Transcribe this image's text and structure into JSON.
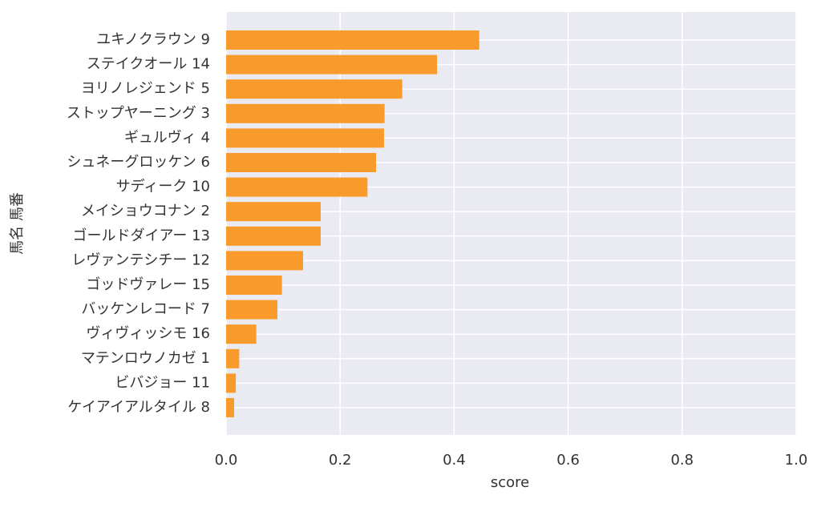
{
  "chart_data": {
    "type": "barh",
    "xlabel": "score",
    "ylabel": "馬名 馬番",
    "categories": [
      "ユキノクラウン 9",
      "ステイクオール 14",
      "ヨリノレジェンド 5",
      "ストップヤーニング 3",
      "ギュルヴィ 4",
      "シュネーグロッケン 6",
      "サディーク 10",
      "メイショウコナン 2",
      "ゴールドダイアー 13",
      "レヴァンテシチー 12",
      "ゴッドヴァレー 15",
      "バッケンレコード 7",
      "ヴィヴィッシモ 16",
      "マテンロウノカゼ 1",
      "ビバジョー 11",
      "ケイアイアルタイル 8"
    ],
    "values": [
      0.444,
      0.37,
      0.309,
      0.278,
      0.277,
      0.263,
      0.248,
      0.166,
      0.166,
      0.135,
      0.098,
      0.09,
      0.053,
      0.023,
      0.017,
      0.014
    ],
    "color": "#f99b2b",
    "xlim": [
      0,
      1
    ],
    "xticks": [
      {
        "value": 0,
        "label": "0.0"
      },
      {
        "value": 0.2,
        "label": "0.2"
      },
      {
        "value": 0.4,
        "label": "0.4"
      },
      {
        "value": 0.6,
        "label": "0.6"
      },
      {
        "value": 0.8,
        "label": "0.8"
      },
      {
        "value": 1,
        "label": "1.0"
      }
    ],
    "grid": true
  }
}
